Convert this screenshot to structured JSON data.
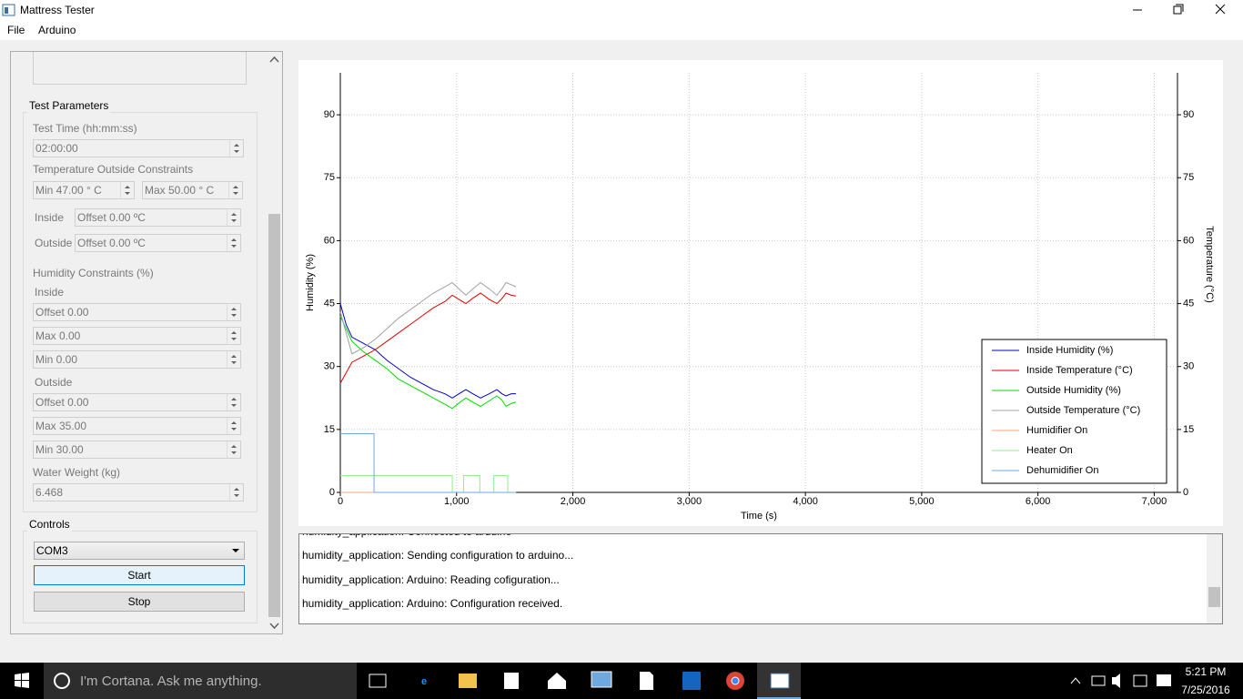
{
  "window": {
    "title": "Mattress Tester"
  },
  "menu": [
    "File",
    "Arduino"
  ],
  "test_parameters": {
    "title": "Test Parameters",
    "test_time_label": "Test Time (hh:mm:ss)",
    "test_time": "02:00:00",
    "temp_label": "Temperature Outside Constraints",
    "temp_min": "Min 47.00 ° C",
    "temp_max": "Max 50.00 ° C",
    "inside_label": "Inside",
    "inside_offset": "Offset 0.00 ºC",
    "outside_label": "Outside",
    "outside_offset": "Offset 0.00 ºC",
    "humidity_label": "Humidity Constraints (%)",
    "humidity_inside_label": "Inside",
    "humidity_inside": [
      "Offset 0.00",
      "Max 0.00",
      "Min 0.00"
    ],
    "humidity_outside_label": "Outside",
    "humidity_outside": [
      "Offset 0.00",
      "Max 35.00",
      "Min 30.00"
    ],
    "water_label": "Water Weight (kg)",
    "water_weight": "6.468"
  },
  "controls": {
    "title": "Controls",
    "port": "COM3",
    "start": "Start",
    "stop": "Stop"
  },
  "chart_data": {
    "type": "line",
    "xlabel": "Time (s)",
    "ylabel": "Humidity (%)",
    "y2label": "Temperature (°C)",
    "xlim": [
      0,
      7200
    ],
    "ylim": [
      0,
      100
    ],
    "y2lim": [
      0,
      100
    ],
    "xticks": [
      0,
      {
        "value": 1000,
        "label": "1,000"
      },
      {
        "value": 2000,
        "label": "2,000"
      },
      {
        "value": 3000,
        "label": "3,000"
      },
      {
        "value": 4000,
        "label": "4,000"
      },
      {
        "value": 5000,
        "label": "5,000"
      },
      {
        "value": 6000,
        "label": "6,000"
      },
      {
        "value": 7000,
        "label": "7,000"
      }
    ],
    "yticks": [
      0,
      15,
      30,
      45,
      60,
      75,
      90
    ],
    "y2ticks": [
      0,
      15,
      30,
      45,
      60,
      75,
      90
    ],
    "grid": true,
    "legend": "lower right",
    "series": [
      {
        "name": "Inside Humidity (%)",
        "color": "#0000cc",
        "x": [
          0,
          50,
          100,
          200,
          300,
          400,
          500,
          600,
          700,
          800,
          900,
          963,
          1020,
          1080,
          1140,
          1206,
          1280,
          1347,
          1390,
          1425,
          1470,
          1511
        ],
        "values": [
          45,
          40,
          37,
          35.5,
          34,
          31.5,
          29.5,
          27.5,
          26,
          24.5,
          23.5,
          22.5,
          23.5,
          24.5,
          23.5,
          22.5,
          23.5,
          24.5,
          23.5,
          23,
          23.5,
          23.5
        ]
      },
      {
        "name": "Inside Temperature (°C)",
        "color": "#e00000",
        "axis": "y2",
        "x": [
          0,
          50,
          100,
          200,
          300,
          400,
          500,
          600,
          700,
          800,
          900,
          963,
          1020,
          1080,
          1140,
          1206,
          1280,
          1347,
          1390,
          1425,
          1470,
          1511
        ],
        "values": [
          26,
          28.5,
          31,
          32.5,
          34,
          36,
          38,
          40,
          42,
          44,
          45.5,
          47,
          46,
          45,
          46.3,
          47.5,
          46,
          45,
          46.2,
          47.5,
          47,
          46.8
        ]
      },
      {
        "name": "Outside Humidity (%)",
        "color": "#00dd00",
        "x": [
          0,
          50,
          100,
          200,
          300,
          400,
          500,
          600,
          700,
          800,
          900,
          963,
          1020,
          1080,
          1140,
          1206,
          1280,
          1347,
          1390,
          1425,
          1470,
          1511
        ],
        "values": [
          42,
          39,
          36,
          33.5,
          31.5,
          29.5,
          27,
          25.5,
          24,
          22.5,
          21,
          20,
          21.3,
          22.5,
          21.5,
          20.5,
          21.8,
          23,
          22,
          20.5,
          21.2,
          21.5
        ]
      },
      {
        "name": "Outside Temperature (°C)",
        "color": "#a0a0a4",
        "axis": "y2",
        "x": [
          0,
          50,
          100,
          200,
          300,
          400,
          500,
          600,
          700,
          800,
          900,
          963,
          1020,
          1080,
          1140,
          1206,
          1280,
          1347,
          1390,
          1425,
          1470,
          1511
        ],
        "values": [
          43,
          38,
          33,
          34.5,
          36.5,
          39,
          41.5,
          43.5,
          45.5,
          47.5,
          49,
          50,
          48.5,
          47,
          48.5,
          50,
          48.5,
          47,
          48.5,
          50,
          49.5,
          49
        ]
      },
      {
        "name": "Humidifier On",
        "color": "#f4a582",
        "x": [
          0,
          1511
        ],
        "values": [
          0,
          0
        ]
      },
      {
        "name": "Heater On",
        "color": "#90ee90",
        "x": [
          0,
          963,
          963,
          1060,
          1060,
          1200,
          1200,
          1320,
          1320,
          1440,
          1440,
          1511
        ],
        "values": [
          4,
          4,
          0,
          0,
          4,
          4,
          0,
          0,
          4,
          4,
          0,
          0
        ]
      },
      {
        "name": "Dehumidifier On",
        "color": "#6fa8dc",
        "x": [
          0,
          290,
          290,
          1511
        ],
        "values": [
          14,
          14,
          0,
          0
        ]
      }
    ]
  },
  "log": [
    "humidity_application: Connected to arduino",
    "humidity_application: Sending configuration to arduino...",
    "humidity_application: Arduino: Reading cofiguration...",
    "humidity_application: Arduino: Configuration received."
  ],
  "taskbar": {
    "search": "I'm Cortana. Ask me anything.",
    "time": "5:21 PM",
    "date": "7/25/2016"
  }
}
